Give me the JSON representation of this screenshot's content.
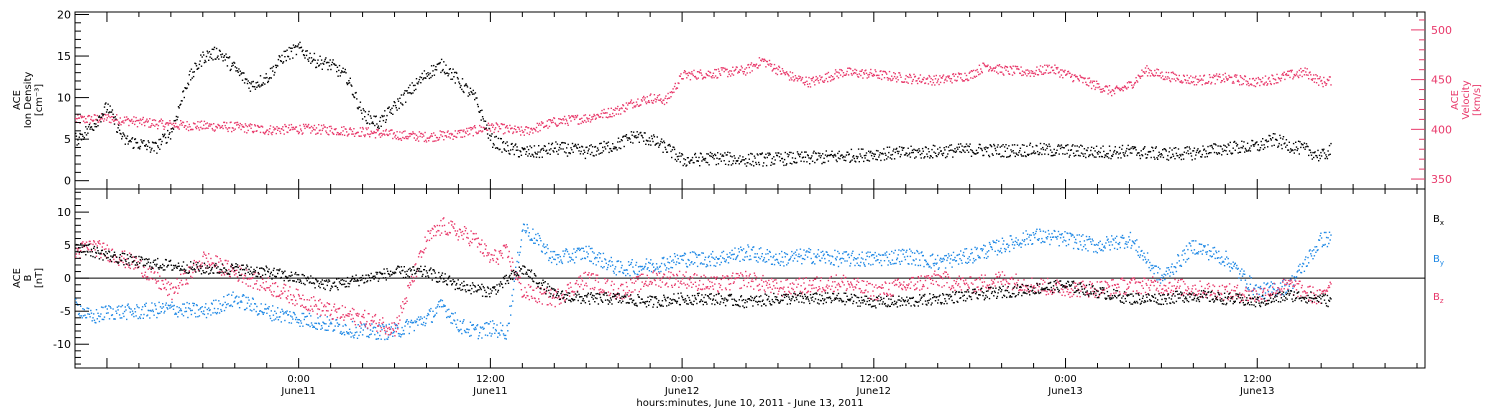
{
  "colors": {
    "density": "#000000",
    "velocity": "#e8386a",
    "bx": "#000000",
    "by": "#1e88e5",
    "bz": "#e8386a",
    "frame": "#000000"
  },
  "xaxis": {
    "label": "hours:minutes, June 10, 2011 - June 13, 2011",
    "ticks": [
      {
        "hour": 24,
        "time": "0:00",
        "date": "June11"
      },
      {
        "hour": 36,
        "time": "12:00",
        "date": "June11"
      },
      {
        "hour": 48,
        "time": "0:00",
        "date": "June12"
      },
      {
        "hour": 60,
        "time": "12:00",
        "date": "June12"
      },
      {
        "hour": 72,
        "time": "0:00",
        "date": "June13"
      },
      {
        "hour": 84,
        "time": "12:00",
        "date": "June13"
      }
    ]
  },
  "chart_data": [
    {
      "type": "scatter",
      "panel": "top",
      "x_unit": "hours since 00:00 June 10, 2011",
      "xlim": [
        10.0,
        94.5
      ],
      "ylabel_left": [
        "ACE",
        "Ion Density",
        "[cm⁻³]"
      ],
      "ylabel_right": [
        "ACE",
        "Velocity",
        "[km/s]"
      ],
      "left_axis": {
        "ylim": [
          -1,
          20.3
        ],
        "ticks": [
          0,
          5,
          10,
          15,
          20
        ]
      },
      "right_axis": {
        "ylim": [
          340,
          518
        ],
        "ticks": [
          350,
          400,
          450,
          500
        ]
      },
      "grid": false,
      "series": [
        {
          "name": "Ion Density",
          "axis": "left",
          "x": [
            10.0,
            11.0,
            12.0,
            13.0,
            14.0,
            15.0,
            16.0,
            17.0,
            18.0,
            19.0,
            20.0,
            21.0,
            22.0,
            23.0,
            24.0,
            25.0,
            26.0,
            27.0,
            28.0,
            29.0,
            30.0,
            31.0,
            32.0,
            33.0,
            34.0,
            35.0,
            36.0,
            37.0,
            38.0,
            39.0,
            40.0,
            41.0,
            42.0,
            43.0,
            44.0,
            45.0,
            46.0,
            47.0,
            48.0,
            50.0,
            52.0,
            54.0,
            56.0,
            58.0,
            60.0,
            62.0,
            64.0,
            66.0,
            68.0,
            70.0,
            72.0,
            74.0,
            76.0,
            78.0,
            80.0,
            82.0,
            84.0,
            85.0,
            86.0,
            87.0,
            88.0,
            88.6
          ],
          "values": [
            5,
            6.5,
            9,
            5,
            4.5,
            4,
            6,
            12,
            15,
            15.5,
            13.5,
            11.5,
            12.5,
            15,
            16,
            14.5,
            14,
            12.5,
            8,
            7,
            9,
            11,
            13,
            14,
            12,
            10,
            5,
            4,
            3.5,
            3.5,
            4,
            3.8,
            3.5,
            4,
            4.5,
            5.5,
            5,
            4,
            2.5,
            2.8,
            2.6,
            2.7,
            2.8,
            3,
            3.3,
            3.4,
            3.6,
            3.8,
            3.7,
            3.8,
            3.7,
            3.5,
            3.6,
            3.3,
            3.4,
            4,
            4.2,
            5,
            4.3,
            3.8,
            3,
            3.8
          ]
        },
        {
          "name": "Velocity",
          "axis": "right",
          "x": [
            10.0,
            12.0,
            14.0,
            16.0,
            18.0,
            20.0,
            22.0,
            24.0,
            26.0,
            28.0,
            30.0,
            32.0,
            34.0,
            36.0,
            38.0,
            40.0,
            42.0,
            44.0,
            45.0,
            46.0,
            47.0,
            48.0,
            50.0,
            52.0,
            53.0,
            54.0,
            55.0,
            56.0,
            58.0,
            60.0,
            62.0,
            64.0,
            66.0,
            67.0,
            68.0,
            70.0,
            71.0,
            72.0,
            73.0,
            74.0,
            75.0,
            76.0,
            77.0,
            78.0,
            80.0,
            82.0,
            84.0,
            86.0,
            87.0,
            88.0,
            88.6
          ],
          "values": [
            410,
            412,
            408,
            405,
            404,
            403,
            400,
            401,
            400,
            398,
            395,
            393,
            396,
            403,
            398,
            408,
            412,
            420,
            428,
            432,
            430,
            455,
            457,
            460,
            470,
            460,
            452,
            448,
            458,
            456,
            452,
            450,
            455,
            465,
            460,
            458,
            462,
            456,
            450,
            444,
            438,
            445,
            460,
            455,
            450,
            452,
            448,
            455,
            458,
            448,
            450
          ]
        }
      ]
    },
    {
      "type": "scatter",
      "panel": "bottom",
      "x_unit": "hours since 00:00 June 10, 2011",
      "xlim": [
        10.0,
        94.5
      ],
      "ylabel_left": [
        "ACE",
        "B",
        "[nT]"
      ],
      "ylim": [
        -13.6,
        13.5
      ],
      "ticks": [
        -10,
        -5,
        0,
        5,
        10
      ],
      "zero_line": true,
      "grid": false,
      "series": [
        {
          "name": "Bx",
          "label_main": "B",
          "label_sub": "x",
          "x": [
            10.0,
            12.0,
            14.0,
            16.0,
            18.0,
            20.0,
            22.0,
            24.0,
            26.0,
            28.0,
            30.0,
            32.0,
            34.0,
            36.0,
            38.0,
            40.0,
            42.0,
            44.0,
            46.0,
            48.0,
            50.0,
            52.0,
            54.0,
            56.0,
            58.0,
            60.0,
            62.0,
            64.0,
            66.0,
            68.0,
            70.0,
            72.0,
            74.0,
            76.0,
            78.0,
            80.0,
            82.0,
            84.0,
            86.0,
            88.0,
            88.6
          ],
          "values": [
            5,
            3.5,
            2.5,
            2,
            1.5,
            1.5,
            1,
            0,
            -1,
            0,
            1,
            1,
            -1,
            -2,
            1.5,
            -2.5,
            -3,
            -3,
            -3.5,
            -3,
            -3,
            -3.5,
            -3,
            -3,
            -3,
            -3.5,
            -3.5,
            -3,
            -2.5,
            -2,
            -1.5,
            -1,
            -2,
            -3,
            -3,
            -2.5,
            -3,
            -3.5,
            -2.5,
            -3,
            -3.5
          ]
        },
        {
          "name": "By",
          "label_main": "B",
          "label_sub": "y",
          "x": [
            10.0,
            11.0,
            12.0,
            14.0,
            16.0,
            18.0,
            20.0,
            22.0,
            24.0,
            26.0,
            28.0,
            30.0,
            32.0,
            33.0,
            34.0,
            35.0,
            36.0,
            37.0,
            38.0,
            40.0,
            42.0,
            44.0,
            46.0,
            48.0,
            50.0,
            52.0,
            54.0,
            56.0,
            58.0,
            60.0,
            62.0,
            64.0,
            66.0,
            68.0,
            70.0,
            72.0,
            74.0,
            76.0,
            78.0,
            80.0,
            82.0,
            84.0,
            86.0,
            88.0,
            88.6
          ],
          "values": [
            -4,
            -6,
            -5,
            -5,
            -4.5,
            -5,
            -3,
            -5,
            -6,
            -7,
            -8,
            -8,
            -6,
            -4,
            -7,
            -8,
            -7.5,
            -8,
            8,
            3,
            4,
            1.5,
            2,
            3,
            3,
            4,
            3,
            3.5,
            3,
            3,
            3.5,
            2.5,
            3.5,
            5,
            6.5,
            6,
            5,
            6,
            0,
            5,
            3,
            -2,
            -1,
            6,
            6
          ]
        },
        {
          "name": "Bz",
          "label_main": "B",
          "label_sub": "z",
          "x": [
            10.0,
            11.0,
            12.0,
            14.0,
            16.0,
            18.0,
            20.0,
            22.0,
            24.0,
            26.0,
            28.0,
            30.0,
            32.0,
            33.0,
            34.0,
            35.0,
            36.0,
            37.0,
            38.0,
            40.0,
            42.0,
            44.0,
            46.0,
            48.0,
            50.0,
            52.0,
            54.0,
            56.0,
            58.0,
            60.0,
            62.0,
            64.0,
            66.0,
            68.0,
            70.0,
            72.0,
            74.0,
            76.0,
            78.0,
            80.0,
            82.0,
            84.0,
            86.0,
            88.0,
            88.6
          ],
          "values": [
            4,
            5,
            4,
            2,
            -2,
            3,
            1,
            -1,
            -3,
            -5,
            -6,
            -7.5,
            6,
            8,
            7,
            6,
            3,
            4,
            -2,
            -3,
            0,
            -2,
            0,
            0,
            -1,
            0,
            -1.5,
            -1,
            -0.5,
            -2,
            -1,
            0,
            -1,
            0,
            -1,
            -1.5,
            -1.5,
            -1,
            -1,
            -1.5,
            -2,
            -2.5,
            -1,
            -3,
            0
          ]
        }
      ]
    }
  ]
}
